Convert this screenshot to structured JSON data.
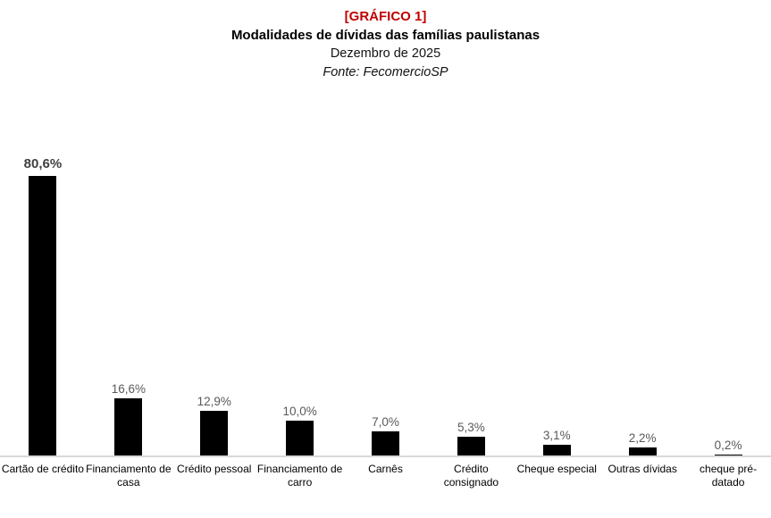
{
  "header": {
    "graphic_label": "[GRÁFICO 1]",
    "title": "Modalidades de dívidas das famílias paulistanas",
    "subtitle": "Dezembro de 2025",
    "source": "Fonte: FecomercioSP"
  },
  "colors": {
    "graphic_label": "#c00000",
    "bar": "#000000",
    "value_label": "#595959",
    "value_label_emphasis": "#404040",
    "axis_line": "#d9d9d9",
    "category_label": "#000000"
  },
  "chart_data": {
    "type": "bar",
    "title": "Modalidades de dívidas das famílias paulistanas",
    "subtitle": "Dezembro de 2025",
    "source": "Fonte: FecomercioSP",
    "categories": [
      "Cartão de crédito",
      "Financiamento de casa",
      "Crédito pessoal",
      "Financiamento de carro",
      "Carnês",
      "Crédito consignado",
      "Cheque especial",
      "Outras dívidas",
      "cheque pré-datado"
    ],
    "values": [
      80.6,
      16.6,
      12.9,
      10.0,
      7.0,
      5.3,
      3.1,
      2.2,
      0.2
    ],
    "value_labels": [
      "80,6%",
      "16,6%",
      "12,9%",
      "10,0%",
      "7,0%",
      "5,3%",
      "3,1%",
      "2,2%",
      "0,2%"
    ],
    "xlabel": "",
    "ylabel": "",
    "ylim": [
      0,
      81
    ],
    "grid": false,
    "legend": false,
    "bar_color": "#000000"
  }
}
